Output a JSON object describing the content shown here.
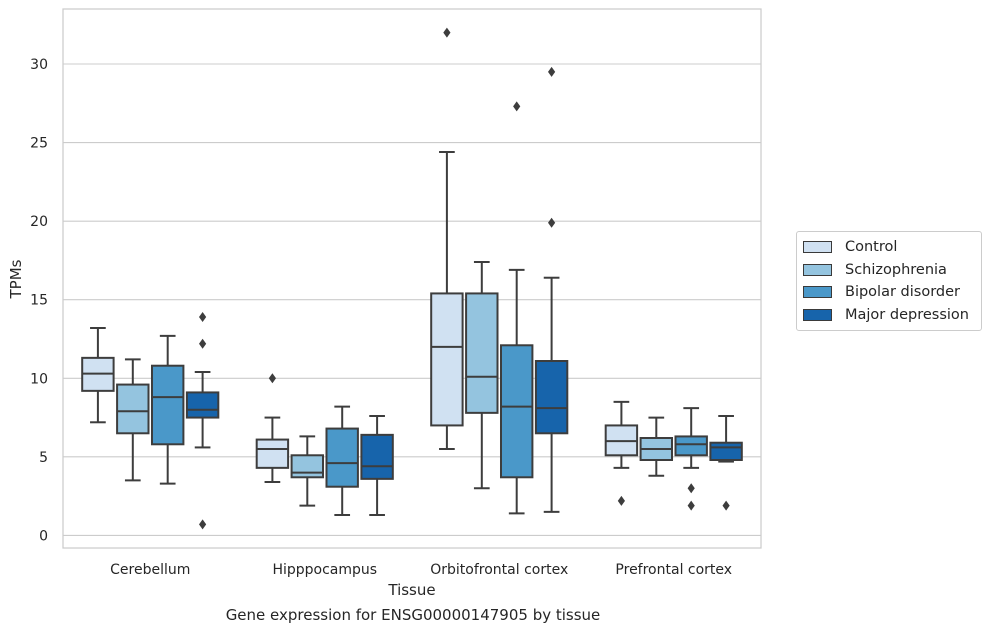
{
  "chart_data": {
    "type": "box",
    "xlabel": "Tissue",
    "ylabel": "TPMs",
    "caption": "Gene expression for ENSG00000147905 by tissue",
    "ylim": [
      -0.8,
      33.5
    ],
    "yticks": [
      0,
      5,
      10,
      15,
      20,
      25,
      30
    ],
    "grid": "horizontal",
    "legend_position": "right",
    "categories": [
      "Cerebellum",
      "Hipppocampus",
      "Orbitofrontal cortex",
      "Prefrontal cortex"
    ],
    "series": [
      {
        "name": "Control",
        "color": "#d0e1f2",
        "boxes": [
          {
            "whislo": 7.2,
            "q1": 9.2,
            "med": 10.3,
            "q3": 11.3,
            "whishi": 13.2,
            "fliers": []
          },
          {
            "whislo": 3.4,
            "q1": 4.3,
            "med": 5.5,
            "q3": 6.1,
            "whishi": 7.5,
            "fliers": [
              10.0
            ]
          },
          {
            "whislo": 5.5,
            "q1": 7.0,
            "med": 12.0,
            "q3": 15.4,
            "whishi": 24.4,
            "fliers": [
              32.0
            ]
          },
          {
            "whislo": 4.3,
            "q1": 5.1,
            "med": 6.0,
            "q3": 7.0,
            "whishi": 8.5,
            "fliers": [
              2.2
            ]
          }
        ]
      },
      {
        "name": "Schizophrenia",
        "color": "#94c4df",
        "boxes": [
          {
            "whislo": 3.5,
            "q1": 6.5,
            "med": 7.9,
            "q3": 9.6,
            "whishi": 11.2,
            "fliers": []
          },
          {
            "whislo": 1.9,
            "q1": 3.7,
            "med": 4.0,
            "q3": 5.1,
            "whishi": 6.3,
            "fliers": []
          },
          {
            "whislo": 3.0,
            "q1": 7.8,
            "med": 10.1,
            "q3": 15.4,
            "whishi": 17.4,
            "fliers": []
          },
          {
            "whislo": 3.8,
            "q1": 4.8,
            "med": 5.5,
            "q3": 6.2,
            "whishi": 7.5,
            "fliers": []
          }
        ]
      },
      {
        "name": "Bipolar disorder",
        "color": "#4a98c9",
        "boxes": [
          {
            "whislo": 3.3,
            "q1": 5.8,
            "med": 8.8,
            "q3": 10.8,
            "whishi": 12.7,
            "fliers": []
          },
          {
            "whislo": 1.3,
            "q1": 3.1,
            "med": 4.6,
            "q3": 6.8,
            "whishi": 8.2,
            "fliers": []
          },
          {
            "whislo": 1.4,
            "q1": 3.7,
            "med": 8.2,
            "q3": 12.1,
            "whishi": 16.9,
            "fliers": [
              27.3
            ]
          },
          {
            "whislo": 4.3,
            "q1": 5.1,
            "med": 5.8,
            "q3": 6.3,
            "whishi": 8.1,
            "fliers": [
              3.0,
              1.9
            ]
          }
        ]
      },
      {
        "name": "Major depression",
        "color": "#1764ab",
        "boxes": [
          {
            "whislo": 5.6,
            "q1": 7.5,
            "med": 8.0,
            "q3": 9.1,
            "whishi": 10.4,
            "fliers": [
              13.9,
              12.2,
              0.7
            ]
          },
          {
            "whislo": 1.3,
            "q1": 3.6,
            "med": 4.4,
            "q3": 6.4,
            "whishi": 7.6,
            "fliers": []
          },
          {
            "whislo": 1.5,
            "q1": 6.5,
            "med": 8.1,
            "q3": 11.1,
            "whishi": 16.4,
            "fliers": [
              29.5,
              19.9
            ]
          },
          {
            "whislo": 4.7,
            "q1": 4.8,
            "med": 5.6,
            "q3": 5.9,
            "whishi": 7.6,
            "fliers": [
              1.9
            ]
          }
        ]
      }
    ]
  }
}
